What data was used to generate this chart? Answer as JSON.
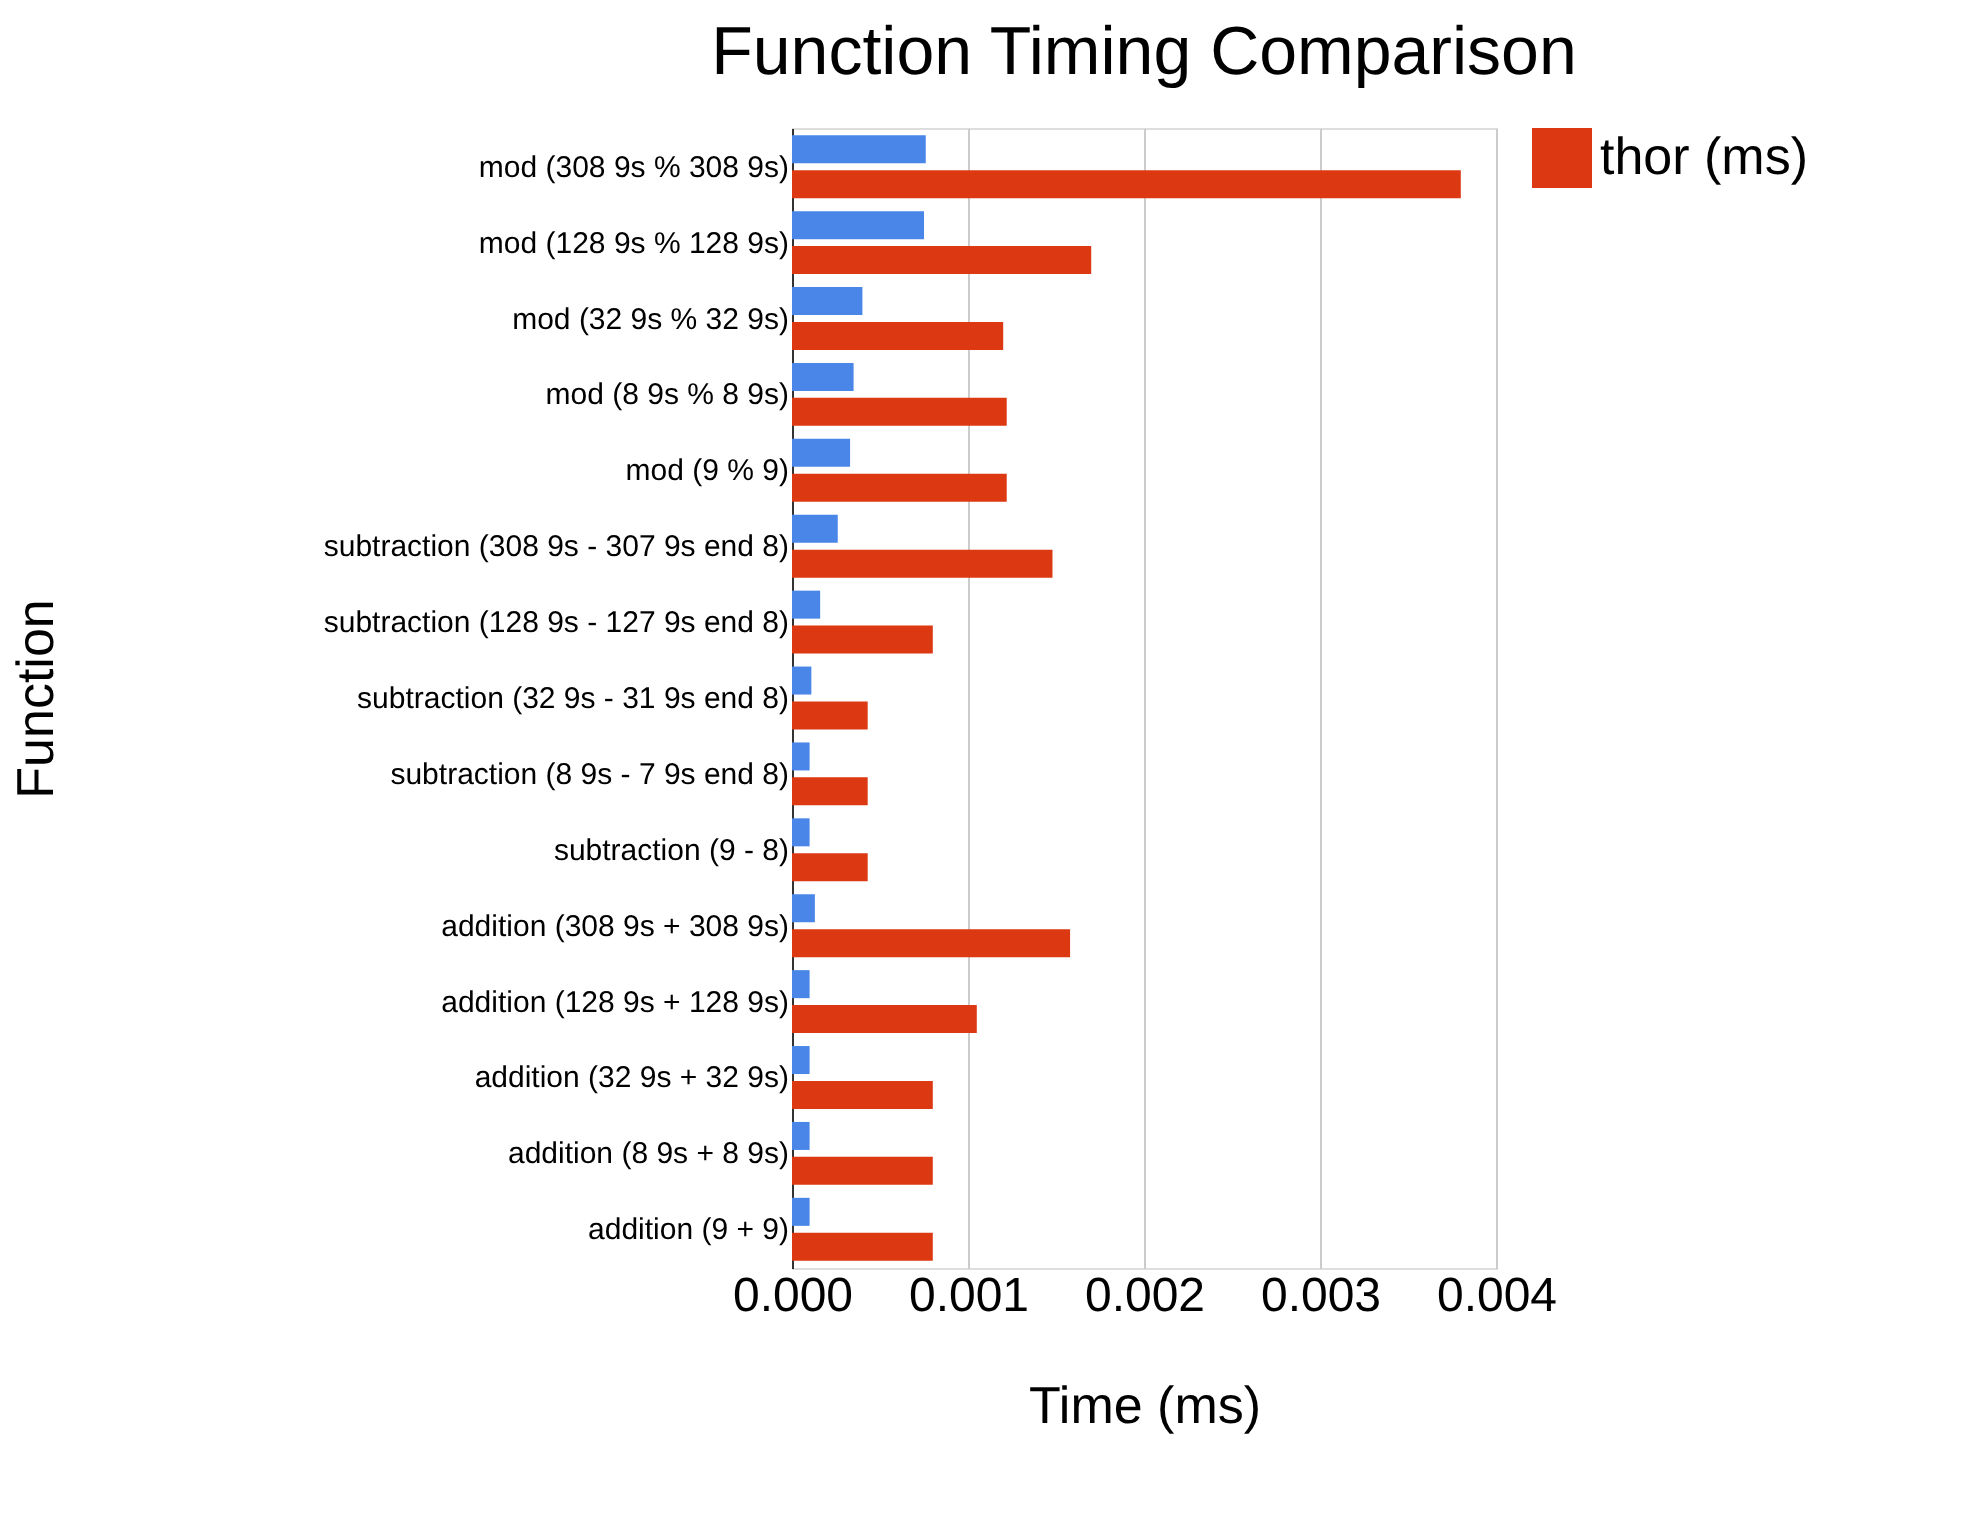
{
  "chart_data": {
    "type": "bar",
    "orientation": "horizontal",
    "title": "Function Timing Comparison",
    "xlabel": "Time (ms)",
    "ylabel": "Function",
    "categories": [
      "mod (308 9s % 308 9s)",
      "mod (128 9s % 128 9s)",
      "mod (32 9s % 32 9s)",
      "mod (8 9s % 8 9s)",
      "mod (9 % 9)",
      "subtraction (308 9s - 307 9s end 8)",
      "subtraction (128 9s - 127 9s end 8)",
      "subtraction (32 9s - 31 9s end 8)",
      "subtraction (8 9s - 7 9s end 8)",
      "subtraction (9 - 8)",
      "addition (308 9s + 308 9s)",
      "addition (128 9s + 128 9s)",
      "addition (32 9s + 32 9s)",
      "addition (8 9s + 8 9s)",
      "addition (9 + 9)"
    ],
    "series": [
      {
        "color": "#4a86e8",
        "values": [
          0.00076,
          0.00075,
          0.0004,
          0.00035,
          0.00033,
          0.00026,
          0.00016,
          0.00011,
          0.0001,
          0.0001,
          0.00013,
          0.0001,
          0.0001,
          0.0001,
          0.0001
        ]
      },
      {
        "name": "thor (ms)",
        "color": "#dc3912",
        "values": [
          0.0038,
          0.0017,
          0.0012,
          0.00122,
          0.00122,
          0.00148,
          0.0008,
          0.00043,
          0.00043,
          0.00043,
          0.00158,
          0.00105,
          0.0008,
          0.0008,
          0.0008
        ]
      }
    ],
    "xlim": [
      0,
      0.004
    ],
    "xticks": [
      {
        "value": 0,
        "label": "0.000"
      },
      {
        "value": 0.001,
        "label": "0.001"
      },
      {
        "value": 0.002,
        "label": "0.002"
      },
      {
        "value": 0.003,
        "label": "0.003"
      },
      {
        "value": 0.004,
        "label": "0.004"
      }
    ],
    "grid": "x",
    "legend": "right"
  }
}
